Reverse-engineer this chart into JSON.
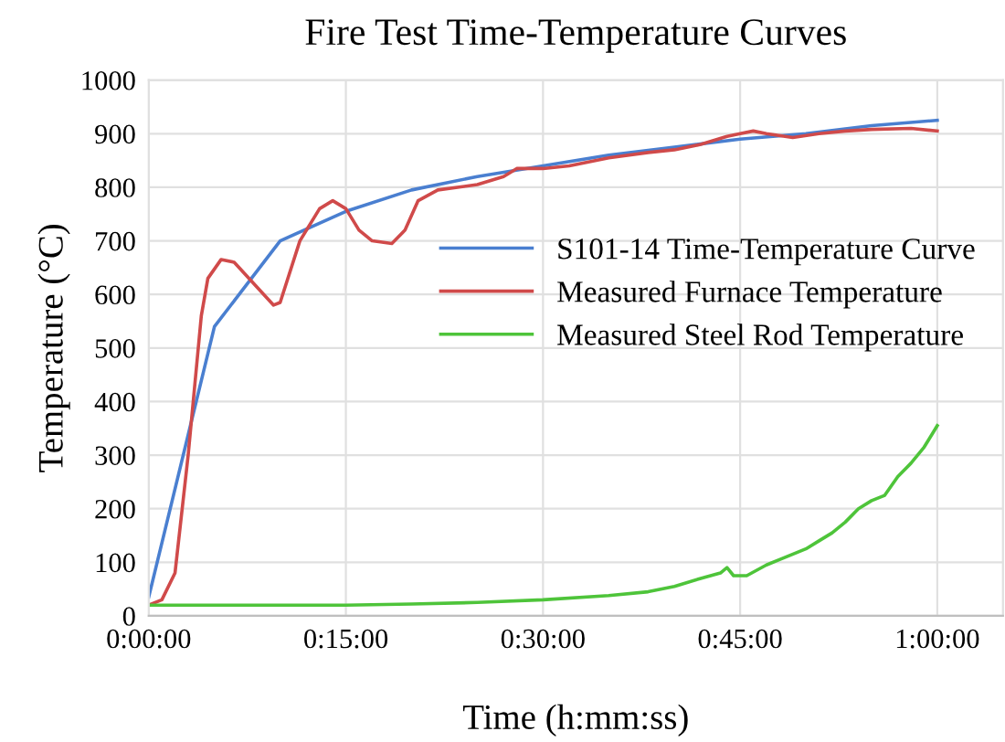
{
  "chart_data": {
    "type": "line",
    "title": "Fire Test Time-Temperature Curves",
    "xlabel": "Time (h:mm:ss)",
    "ylabel": "Temperature (°C)",
    "xlim": [
      0,
      65
    ],
    "xticks": [
      {
        "value": 0,
        "label": "0:00:00"
      },
      {
        "value": 15,
        "label": "0:15:00"
      },
      {
        "value": 30,
        "label": "0:30:00"
      },
      {
        "value": 45,
        "label": "0:45:00"
      },
      {
        "value": 60,
        "label": "1:00:00"
      }
    ],
    "ylim": [
      0,
      1000
    ],
    "yticks": [
      0,
      100,
      200,
      300,
      400,
      500,
      600,
      700,
      800,
      900,
      1000
    ],
    "grid": true,
    "legend": "right",
    "marker": "none",
    "line_style": "solid",
    "series": [
      {
        "name": "S101-14 Time-Temperature Curve",
        "color": "#4a7fd0",
        "x": [
          0,
          5,
          10,
          15,
          20,
          25,
          30,
          35,
          40,
          45,
          50,
          55,
          60
        ],
        "values": [
          35,
          540,
          700,
          755,
          795,
          820,
          840,
          860,
          875,
          890,
          900,
          915,
          925
        ]
      },
      {
        "name": "Measured Furnace Temperature",
        "color": "#d04a4a",
        "x": [
          0,
          1,
          2,
          3,
          4,
          4.5,
          5.5,
          6.5,
          8,
          9.5,
          10,
          11.5,
          13,
          14,
          15,
          16,
          17,
          18.5,
          19.5,
          20.5,
          22,
          25,
          27,
          28,
          30,
          32,
          35,
          38,
          40,
          42,
          44,
          45,
          46,
          47,
          49,
          51,
          53,
          55,
          58,
          60
        ],
        "values": [
          20,
          30,
          80,
          300,
          560,
          630,
          665,
          660,
          620,
          580,
          585,
          700,
          760,
          775,
          760,
          720,
          700,
          695,
          720,
          775,
          795,
          805,
          820,
          835,
          835,
          840,
          855,
          865,
          870,
          880,
          895,
          900,
          905,
          900,
          893,
          900,
          905,
          908,
          910,
          905
        ]
      },
      {
        "name": "Measured Steel Rod Temperature",
        "color": "#4ec43a",
        "x": [
          0,
          15,
          20,
          25,
          30,
          35,
          38,
          40,
          42,
          43.5,
          44,
          44.5,
          45.5,
          47,
          48,
          50,
          51,
          52,
          53,
          54,
          55,
          56,
          57,
          58,
          59,
          60
        ],
        "values": [
          20,
          20,
          22,
          25,
          30,
          38,
          45,
          55,
          70,
          80,
          90,
          75,
          75,
          95,
          105,
          125,
          140,
          155,
          175,
          200,
          215,
          225,
          260,
          285,
          315,
          355
        ]
      }
    ]
  }
}
